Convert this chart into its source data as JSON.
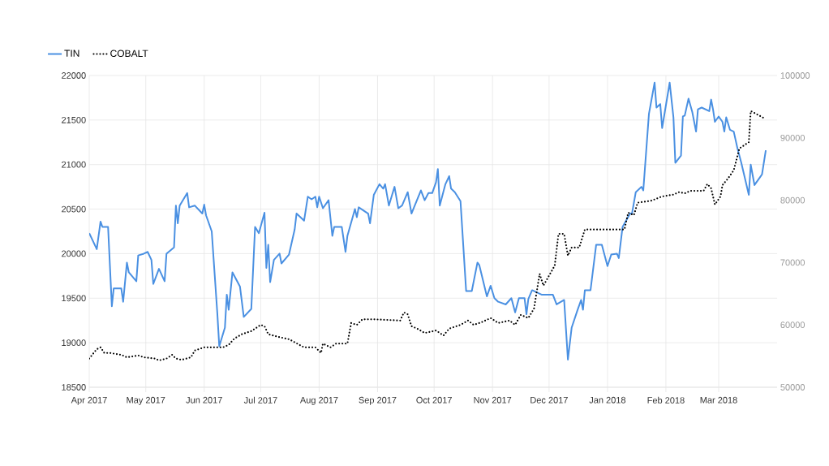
{
  "chart_data": {
    "type": "line",
    "legend": "top left",
    "grid": true,
    "marker": "none",
    "xlim": [
      "2017-04-01",
      "2018-04-01"
    ],
    "xticks": [
      {
        "value": "2017-04-01",
        "label": "Apr 2017"
      },
      {
        "value": "2017-05-01",
        "label": "May 2017"
      },
      {
        "value": "2017-06-01",
        "label": "Jun 2017"
      },
      {
        "value": "2017-07-01",
        "label": "Jul 2017"
      },
      {
        "value": "2017-08-01",
        "label": "Aug 2017"
      },
      {
        "value": "2017-09-01",
        "label": "Sep 2017"
      },
      {
        "value": "2017-10-01",
        "label": "Oct 2017"
      },
      {
        "value": "2017-11-01",
        "label": "Nov 2017"
      },
      {
        "value": "2017-12-01",
        "label": "Dec 2017"
      },
      {
        "value": "2018-01-01",
        "label": "Jan 2018"
      },
      {
        "value": "2018-02-01",
        "label": "Feb 2018"
      },
      {
        "value": "2018-03-01",
        "label": "Mar 2018"
      }
    ],
    "ylim": [
      18500,
      22000
    ],
    "yticks": [
      18500,
      19000,
      19500,
      20000,
      20500,
      21000,
      21500,
      22000
    ],
    "y2lim": [
      50000,
      100000
    ],
    "y2ticks": [
      50000,
      60000,
      70000,
      80000,
      90000,
      100000
    ],
    "series": [
      {
        "name": "TIN",
        "color": "#4a90e2",
        "line_style": "solid",
        "x": [
          "2017-04-01",
          "2017-04-05",
          "2017-04-07",
          "2017-04-08",
          "2017-04-11",
          "2017-04-13",
          "2017-04-14",
          "2017-04-18",
          "2017-04-19",
          "2017-04-21",
          "2017-04-22",
          "2017-04-26",
          "2017-04-27",
          "2017-04-30",
          "2017-05-02",
          "2017-05-04",
          "2017-05-05",
          "2017-05-08",
          "2017-05-11",
          "2017-05-12",
          "2017-05-16",
          "2017-05-17",
          "2017-05-18",
          "2017-05-19",
          "2017-05-23",
          "2017-05-24",
          "2017-05-27",
          "2017-05-31",
          "2017-06-01",
          "2017-06-02",
          "2017-06-05",
          "2017-06-08",
          "2017-06-09",
          "2017-06-12",
          "2017-06-13",
          "2017-06-14",
          "2017-06-16",
          "2017-06-20",
          "2017-06-22",
          "2017-06-26",
          "2017-06-28",
          "2017-06-30",
          "2017-07-03",
          "2017-07-04",
          "2017-07-05",
          "2017-07-06",
          "2017-07-08",
          "2017-07-11",
          "2017-07-12",
          "2017-07-16",
          "2017-07-19",
          "2017-07-20",
          "2017-07-24",
          "2017-07-26",
          "2017-07-28",
          "2017-07-30",
          "2017-07-31",
          "2017-08-01",
          "2017-08-03",
          "2017-08-06",
          "2017-08-08",
          "2017-08-09",
          "2017-08-13",
          "2017-08-15",
          "2017-08-16",
          "2017-08-20",
          "2017-08-21",
          "2017-08-22",
          "2017-08-27",
          "2017-08-28",
          "2017-08-30",
          "2017-09-02",
          "2017-09-04",
          "2017-09-05",
          "2017-09-07",
          "2017-09-10",
          "2017-09-12",
          "2017-09-14",
          "2017-09-17",
          "2017-09-19",
          "2017-09-24",
          "2017-09-26",
          "2017-09-28",
          "2017-09-30",
          "2017-10-02",
          "2017-10-03",
          "2017-10-04",
          "2017-10-07",
          "2017-10-09",
          "2017-10-10",
          "2017-10-12",
          "2017-10-15",
          "2017-10-18",
          "2017-10-21",
          "2017-10-24",
          "2017-10-25",
          "2017-10-29",
          "2017-10-31",
          "2017-11-02",
          "2017-11-04",
          "2017-11-08",
          "2017-11-11",
          "2017-11-13",
          "2017-11-15",
          "2017-11-18",
          "2017-11-19",
          "2017-11-20",
          "2017-11-22",
          "2017-11-27",
          "2017-12-03",
          "2017-12-05",
          "2017-12-09",
          "2017-12-11",
          "2017-12-13",
          "2017-12-16",
          "2017-12-18",
          "2017-12-19",
          "2017-12-20",
          "2017-12-23",
          "2017-12-26",
          "2017-12-29",
          "2018-01-01",
          "2018-01-03",
          "2018-01-06",
          "2018-01-07",
          "2018-01-09",
          "2018-01-13",
          "2018-01-14",
          "2018-01-16",
          "2018-01-19",
          "2018-01-20",
          "2018-01-23",
          "2018-01-26",
          "2018-01-27",
          "2018-01-29",
          "2018-01-30",
          "2018-02-03",
          "2018-02-05",
          "2018-02-06",
          "2018-02-09",
          "2018-02-10",
          "2018-02-11",
          "2018-02-13",
          "2018-02-15",
          "2018-02-17",
          "2018-02-18",
          "2018-02-20",
          "2018-02-24",
          "2018-02-25",
          "2018-02-26",
          "2018-02-27",
          "2018-03-01",
          "2018-03-03",
          "2018-03-04",
          "2018-03-05",
          "2018-03-07",
          "2018-03-09",
          "2018-03-11",
          "2018-03-13",
          "2018-03-17",
          "2018-03-18",
          "2018-03-20",
          "2018-03-23",
          "2018-03-24",
          "2018-03-26"
        ],
        "values": [
          20230,
          20050,
          20360,
          20300,
          20300,
          19410,
          19610,
          19610,
          19460,
          19900,
          19790,
          19690,
          19980,
          20000,
          20020,
          19930,
          19660,
          19830,
          19690,
          20000,
          20070,
          20540,
          20340,
          20540,
          20680,
          20520,
          20540,
          20450,
          20550,
          20430,
          20250,
          19320,
          18960,
          19170,
          19540,
          19370,
          19790,
          19630,
          19290,
          19380,
          20300,
          20230,
          20460,
          19840,
          20100,
          19680,
          19930,
          20000,
          19890,
          19990,
          20270,
          20450,
          20370,
          20640,
          20610,
          20640,
          20520,
          20640,
          20510,
          20600,
          20200,
          20300,
          20300,
          20020,
          20200,
          20500,
          20410,
          20520,
          20450,
          20340,
          20660,
          20780,
          20730,
          20780,
          20540,
          20750,
          20510,
          20540,
          20690,
          20450,
          20710,
          20600,
          20680,
          20680,
          20800,
          20950,
          20540,
          20780,
          20870,
          20730,
          20690,
          20590,
          19580,
          19580,
          19900,
          19870,
          19520,
          19640,
          19500,
          19460,
          19430,
          19500,
          19340,
          19500,
          19500,
          19320,
          19490,
          19590,
          19540,
          19540,
          19430,
          19480,
          18810,
          19170,
          19360,
          19480,
          19370,
          19590,
          19590,
          20100,
          20100,
          19860,
          19990,
          20000,
          19950,
          20300,
          20450,
          20450,
          20690,
          20750,
          20710,
          21570,
          21920,
          21640,
          21680,
          21410,
          21920,
          21530,
          21020,
          21100,
          21540,
          21550,
          21740,
          21590,
          21370,
          21620,
          21640,
          21600,
          21730,
          21620,
          21480,
          21540,
          21480,
          21370,
          21530,
          21390,
          21370,
          21180,
          21020,
          20660,
          21000,
          20770,
          20860,
          20890,
          21160
        ]
      },
      {
        "name": "COBALT",
        "color": "#000000",
        "line_style": "dotted",
        "axis": "y2",
        "x": [
          "2017-04-01",
          "2017-04-05",
          "2017-04-07",
          "2017-04-09",
          "2017-04-12",
          "2017-04-18",
          "2017-04-21",
          "2017-04-27",
          "2017-04-30",
          "2017-05-06",
          "2017-05-08",
          "2017-05-12",
          "2017-05-15",
          "2017-05-17",
          "2017-05-20",
          "2017-05-25",
          "2017-05-27",
          "2017-06-01",
          "2017-06-04",
          "2017-06-11",
          "2017-06-14",
          "2017-06-17",
          "2017-06-21",
          "2017-06-26",
          "2017-07-01",
          "2017-07-03",
          "2017-07-05",
          "2017-07-10",
          "2017-07-16",
          "2017-07-24",
          "2017-07-30",
          "2017-08-02",
          "2017-08-03",
          "2017-08-07",
          "2017-08-10",
          "2017-08-16",
          "2017-08-18",
          "2017-08-21",
          "2017-08-24",
          "2017-08-30",
          "2017-09-13",
          "2017-09-15",
          "2017-09-17",
          "2017-09-19",
          "2017-09-22",
          "2017-09-26",
          "2017-10-02",
          "2017-10-06",
          "2017-10-09",
          "2017-10-15",
          "2017-10-19",
          "2017-10-22",
          "2017-10-26",
          "2017-10-31",
          "2017-11-04",
          "2017-11-10",
          "2017-11-13",
          "2017-11-16",
          "2017-11-20",
          "2017-11-23",
          "2017-11-26",
          "2017-11-28",
          "2017-12-04",
          "2017-12-06",
          "2017-12-09",
          "2017-12-11",
          "2017-12-13",
          "2017-12-17",
          "2017-12-20",
          "2018-01-10",
          "2018-01-12",
          "2018-01-15",
          "2018-01-17",
          "2018-01-24",
          "2018-01-30",
          "2018-02-05",
          "2018-02-08",
          "2018-02-11",
          "2018-02-14",
          "2018-02-21",
          "2018-02-23",
          "2018-02-25",
          "2018-02-27",
          "2018-03-02",
          "2018-03-03",
          "2018-03-06",
          "2018-03-09",
          "2018-03-12",
          "2018-03-17",
          "2018-03-18",
          "2018-03-23",
          "2018-03-26"
        ],
        "values": [
          54600,
          56100,
          56400,
          55500,
          55500,
          55200,
          54800,
          55100,
          54800,
          54600,
          54300,
          54600,
          55200,
          54600,
          54400,
          54800,
          55900,
          56400,
          56400,
          56400,
          56800,
          57800,
          58500,
          59000,
          60000,
          59800,
          58500,
          58100,
          57700,
          56400,
          56400,
          55500,
          57000,
          56400,
          57000,
          57000,
          60300,
          60000,
          60900,
          60900,
          60700,
          62000,
          61700,
          59800,
          59400,
          58700,
          59100,
          58300,
          59400,
          60000,
          60700,
          60000,
          60400,
          61100,
          60300,
          60700,
          60000,
          61600,
          61100,
          62600,
          68200,
          66300,
          69500,
          74600,
          74600,
          71100,
          72400,
          72400,
          75300,
          75300,
          78000,
          77600,
          79600,
          79900,
          80600,
          80900,
          81300,
          81100,
          81500,
          81500,
          82600,
          81900,
          79300,
          80600,
          82400,
          83500,
          84800,
          88300,
          89300,
          94300,
          93500,
          93000
        ]
      }
    ]
  }
}
